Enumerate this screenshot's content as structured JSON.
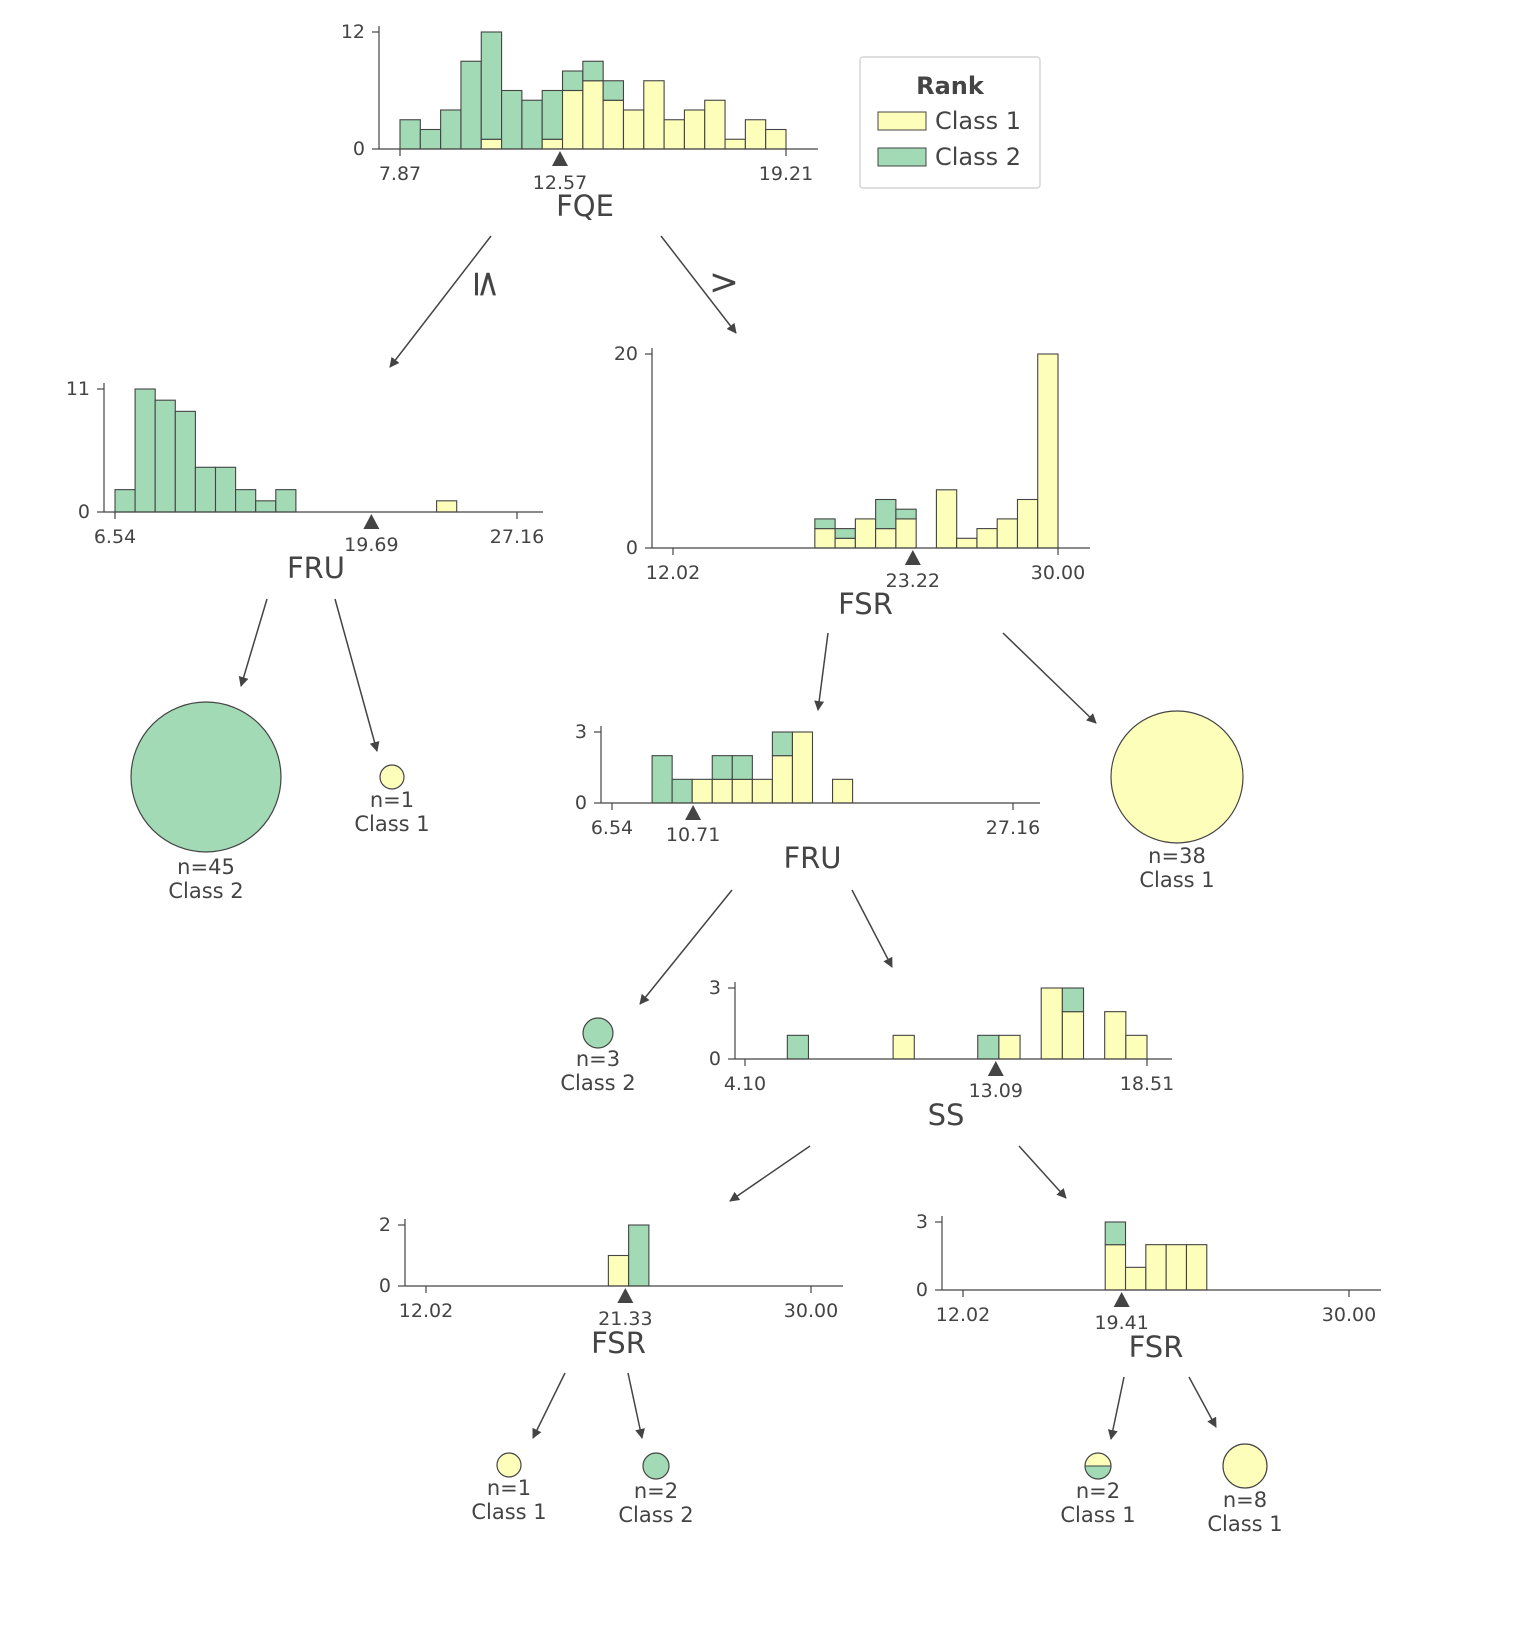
{
  "colors": {
    "class1": "#fefebb",
    "class2": "#a1dab4",
    "ink": "#444444"
  },
  "legend": {
    "title": "Rank",
    "items": [
      {
        "label": "Class 1",
        "color": "#fefebb"
      },
      {
        "label": "Class 2",
        "color": "#a1dab4"
      }
    ]
  },
  "edge_labels": {
    "left": "≤",
    "right": ">"
  },
  "splits": [
    {
      "id": "fqe-root",
      "feature": "FQE",
      "xmin": 7.87,
      "xmax": 19.21,
      "split": 12.57,
      "xticks": [
        "7.87",
        "19.21"
      ],
      "split_label": "12.57",
      "yticks": [
        "0",
        "12"
      ],
      "ymax": 12,
      "bins": [
        [
          0,
          3
        ],
        [
          0,
          2
        ],
        [
          0,
          4
        ],
        [
          0,
          9
        ],
        [
          1,
          11
        ],
        [
          0,
          6
        ],
        [
          0,
          5
        ],
        [
          1,
          5
        ],
        [
          6,
          2
        ],
        [
          7,
          2
        ],
        [
          5,
          2
        ],
        [
          4,
          0
        ],
        [
          7,
          0
        ],
        [
          3,
          0
        ],
        [
          4,
          0
        ],
        [
          5,
          0
        ],
        [
          1,
          0
        ],
        [
          3,
          0
        ],
        [
          2,
          0
        ]
      ]
    },
    {
      "id": "fru-left",
      "feature": "FRU",
      "xmin": 6.54,
      "xmax": 27.16,
      "split": 19.69,
      "xticks": [
        "6.54",
        "27.16"
      ],
      "split_label": "19.69",
      "yticks": [
        "0",
        "11"
      ],
      "ymax": 11,
      "bins": [
        [
          0,
          2
        ],
        [
          0,
          11
        ],
        [
          0,
          10
        ],
        [
          0,
          9
        ],
        [
          0,
          4
        ],
        [
          0,
          4
        ],
        [
          0,
          2
        ],
        [
          0,
          1
        ],
        [
          0,
          2
        ],
        [
          0,
          0
        ],
        [
          0,
          0
        ],
        [
          0,
          0
        ],
        [
          0,
          0
        ],
        [
          0,
          0
        ],
        [
          0,
          0
        ],
        [
          0,
          0
        ],
        [
          1,
          0
        ],
        [
          0,
          0
        ],
        [
          0,
          0
        ],
        [
          0,
          0
        ]
      ]
    },
    {
      "id": "fsr-right",
      "feature": "FSR",
      "xmin": 12.02,
      "xmax": 30.0,
      "split": 23.22,
      "xticks": [
        "12.02",
        "30.00"
      ],
      "split_label": "23.22",
      "yticks": [
        "0",
        "20"
      ],
      "ymax": 20,
      "bins": [
        [
          0,
          0
        ],
        [
          0,
          0
        ],
        [
          0,
          0
        ],
        [
          0,
          0
        ],
        [
          0,
          0
        ],
        [
          0,
          0
        ],
        [
          0,
          0
        ],
        [
          2,
          1
        ],
        [
          1,
          1
        ],
        [
          3,
          0
        ],
        [
          2,
          3
        ],
        [
          3,
          1
        ],
        [
          0,
          0
        ],
        [
          6,
          0
        ],
        [
          1,
          0
        ],
        [
          2,
          0
        ],
        [
          3,
          0
        ],
        [
          5,
          0
        ],
        [
          20,
          0
        ]
      ]
    },
    {
      "id": "fru-mid",
      "feature": "FRU",
      "xmin": 6.54,
      "xmax": 27.16,
      "split": 10.71,
      "xticks": [
        "6.54",
        "27.16"
      ],
      "split_label": "10.71",
      "yticks": [
        "0",
        "3"
      ],
      "ymax": 3,
      "bins": [
        [
          0,
          0
        ],
        [
          0,
          0
        ],
        [
          0,
          2
        ],
        [
          0,
          1
        ],
        [
          1,
          0
        ],
        [
          1,
          1
        ],
        [
          1,
          1
        ],
        [
          1,
          0
        ],
        [
          2,
          1
        ],
        [
          3,
          0
        ],
        [
          0,
          0
        ],
        [
          1,
          0
        ],
        [
          0,
          0
        ],
        [
          0,
          0
        ],
        [
          0,
          0
        ],
        [
          0,
          0
        ],
        [
          0,
          0
        ],
        [
          0,
          0
        ],
        [
          0,
          0
        ],
        [
          0,
          0
        ]
      ]
    },
    {
      "id": "ss",
      "feature": "SS",
      "xmin": 4.1,
      "xmax": 18.51,
      "split": 13.09,
      "xticks": [
        "4.10",
        "18.51"
      ],
      "split_label": "13.09",
      "yticks": [
        "0",
        "3"
      ],
      "ymax": 3,
      "bins": [
        [
          0,
          0
        ],
        [
          0,
          0
        ],
        [
          0,
          1
        ],
        [
          0,
          0
        ],
        [
          0,
          0
        ],
        [
          0,
          0
        ],
        [
          0,
          0
        ],
        [
          1,
          0
        ],
        [
          0,
          0
        ],
        [
          0,
          0
        ],
        [
          0,
          0
        ],
        [
          0,
          1
        ],
        [
          1,
          0
        ],
        [
          0,
          0
        ],
        [
          3,
          0
        ],
        [
          2,
          1
        ],
        [
          0,
          0
        ],
        [
          2,
          0
        ],
        [
          1,
          0
        ]
      ]
    },
    {
      "id": "fsr-left-bottom",
      "feature": "FSR",
      "xmin": 12.02,
      "xmax": 30.0,
      "split": 21.33,
      "xticks": [
        "12.02",
        "30.00"
      ],
      "split_label": "21.33",
      "yticks": [
        "0",
        "2"
      ],
      "ymax": 2,
      "bins": [
        [
          0,
          0
        ],
        [
          0,
          0
        ],
        [
          0,
          0
        ],
        [
          0,
          0
        ],
        [
          0,
          0
        ],
        [
          0,
          0
        ],
        [
          0,
          0
        ],
        [
          0,
          0
        ],
        [
          0,
          0
        ],
        [
          1,
          0
        ],
        [
          0,
          2
        ],
        [
          0,
          0
        ],
        [
          0,
          0
        ],
        [
          0,
          0
        ],
        [
          0,
          0
        ],
        [
          0,
          0
        ],
        [
          0,
          0
        ],
        [
          0,
          0
        ],
        [
          0,
          0
        ]
      ]
    },
    {
      "id": "fsr-right-bottom",
      "feature": "FSR",
      "xmin": 12.02,
      "xmax": 30.0,
      "split": 19.41,
      "xticks": [
        "12.02",
        "30.00"
      ],
      "split_label": "19.41",
      "yticks": [
        "0",
        "3"
      ],
      "ymax": 3,
      "bins": [
        [
          0,
          0
        ],
        [
          0,
          0
        ],
        [
          0,
          0
        ],
        [
          0,
          0
        ],
        [
          0,
          0
        ],
        [
          0,
          0
        ],
        [
          0,
          0
        ],
        [
          2,
          1
        ],
        [
          1,
          0
        ],
        [
          2,
          0
        ],
        [
          2,
          0
        ],
        [
          2,
          0
        ],
        [
          0,
          0
        ],
        [
          0,
          0
        ],
        [
          0,
          0
        ],
        [
          0,
          0
        ],
        [
          0,
          0
        ],
        [
          0,
          0
        ],
        [
          0,
          0
        ]
      ]
    }
  ],
  "leaves": [
    {
      "id": "leaf-1",
      "n": 45,
      "n_label": "n=45",
      "class_label": "Class 2",
      "class1": 0,
      "class2": 45
    },
    {
      "id": "leaf-2",
      "n": 1,
      "n_label": "n=1",
      "class_label": "Class 1",
      "class1": 1,
      "class2": 0
    },
    {
      "id": "leaf-3",
      "n": 38,
      "n_label": "n=38",
      "class_label": "Class 1",
      "class1": 38,
      "class2": 0
    },
    {
      "id": "leaf-4",
      "n": 3,
      "n_label": "n=3",
      "class_label": "Class 2",
      "class1": 0,
      "class2": 3
    },
    {
      "id": "leaf-5",
      "n": 1,
      "n_label": "n=1",
      "class_label": "Class 1",
      "class1": 1,
      "class2": 0
    },
    {
      "id": "leaf-6",
      "n": 2,
      "n_label": "n=2",
      "class_label": "Class 2",
      "class1": 0,
      "class2": 2
    },
    {
      "id": "leaf-7",
      "n": 2,
      "n_label": "n=2",
      "class_label": "Class 1",
      "class1": 1,
      "class2": 1
    },
    {
      "id": "leaf-8",
      "n": 8,
      "n_label": "n=8",
      "class_label": "Class 1",
      "class1": 8,
      "class2": 0
    }
  ]
}
